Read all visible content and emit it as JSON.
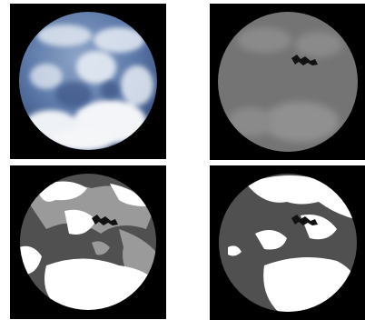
{
  "panels": [
    {
      "id": "original",
      "kind": "color sky image",
      "bg": "#000000",
      "accent": "#5b78a8"
    },
    {
      "id": "grayscale",
      "kind": "grayscale sky image",
      "bg": "#000000",
      "accent": "#7a7a7a"
    },
    {
      "id": "three-level",
      "kind": "three-level segmentation",
      "bg": "#000000",
      "levels": [
        "#ffffff",
        "#9a9a9a",
        "#505050"
      ]
    },
    {
      "id": "binary",
      "kind": "binary cloud mask",
      "bg": "#000000",
      "levels": [
        "#ffffff",
        "#505050"
      ]
    }
  ]
}
